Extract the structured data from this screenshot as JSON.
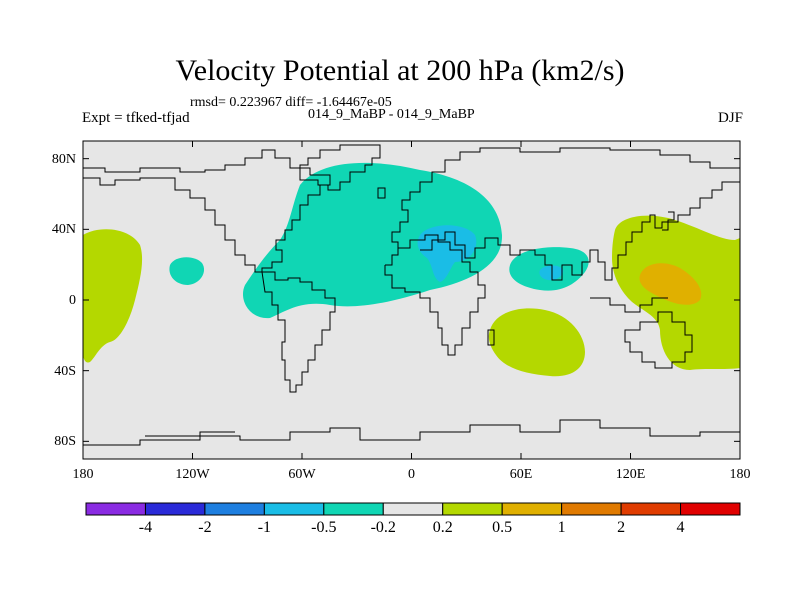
{
  "title": "Velocity Potential at 200 hPa (km2/s)",
  "stats_line": "rmsd= 0.223967 diff= -1.64467e-05",
  "left_label": "Expt = tfked-tfjad",
  "center_label": "014_9_MaBP - 014_9_MaBP",
  "right_label": "DJF",
  "map": {
    "projection": "cylindrical equidistant",
    "lon_range": [
      -180,
      180
    ],
    "lat_range": [
      -90,
      90
    ],
    "lat_ticks": [
      "80N",
      "40N",
      "0",
      "40S",
      "80S"
    ],
    "lon_ticks": [
      "180",
      "120W",
      "60W",
      "0",
      "60E",
      "120E",
      "180"
    ],
    "background_color": "#e6e6e6",
    "coastline_color": "#000000"
  },
  "colorbar": {
    "labels": [
      "-4",
      "-2",
      "-1",
      "-0.5",
      "-0.2",
      "0.2",
      "0.5",
      "1",
      "2",
      "4"
    ],
    "colors": [
      "#8a2be2",
      "#2a2ad8",
      "#1e7fe0",
      "#1abde6",
      "#10d6b4",
      "#e6e6e6",
      "#b4d800",
      "#e0b000",
      "#e07a00",
      "#e03c00",
      "#e00000"
    ]
  }
}
